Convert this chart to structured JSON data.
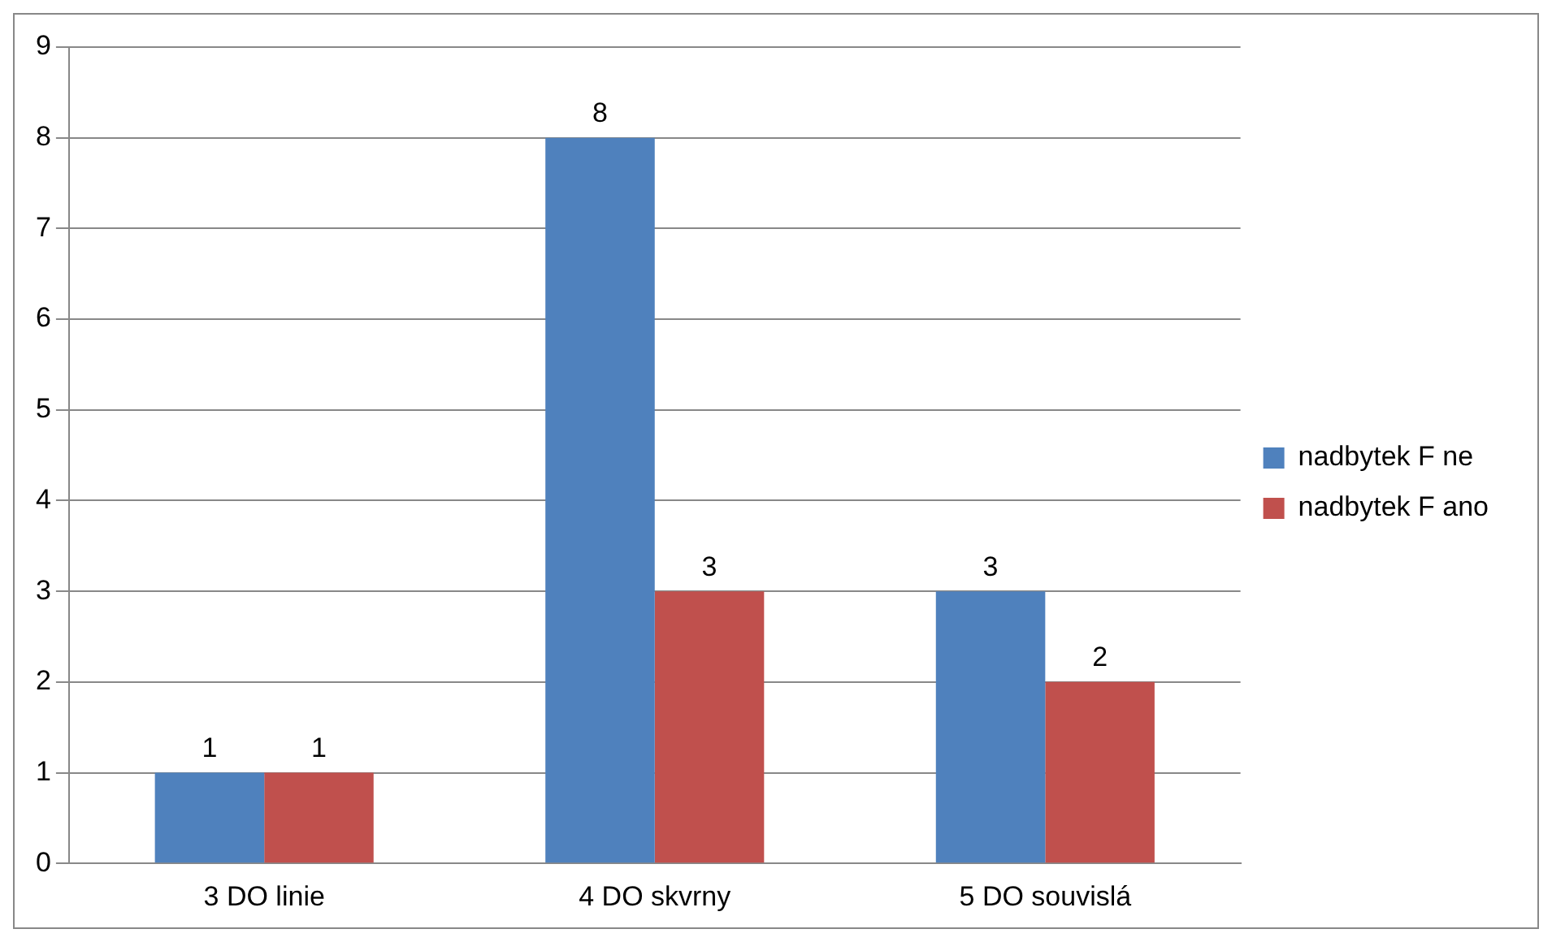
{
  "chart_data": {
    "type": "bar",
    "categories": [
      "3 DO linie",
      "4 DO skvrny",
      "5 DO souvislá"
    ],
    "series": [
      {
        "name": "nadbytek F ne",
        "color": "#4f81bd",
        "values": [
          1,
          8,
          3
        ]
      },
      {
        "name": "nadbytek F ano",
        "color": "#c0504d",
        "values": [
          1,
          3,
          2
        ]
      }
    ],
    "ylim": [
      0,
      9
    ],
    "yticks": [
      0,
      1,
      2,
      3,
      4,
      5,
      6,
      7,
      8,
      9
    ],
    "grid": "y",
    "legend": "right",
    "data_labels": true
  }
}
